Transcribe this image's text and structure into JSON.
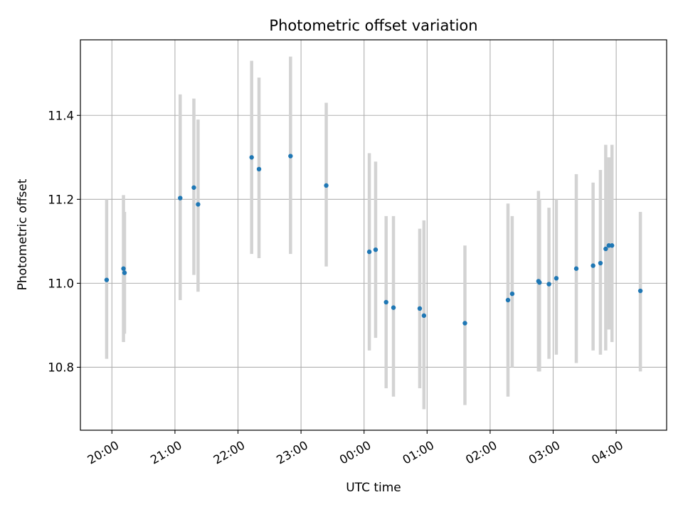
{
  "chart_data": {
    "type": "scatter",
    "title": "Photometric offset variation",
    "xlabel": "UTC time",
    "ylabel": "Photometric offset",
    "x_unit": "UTC time of night starting 19:30",
    "xlim": [
      "19:30",
      "04:48"
    ],
    "ylim": [
      10.65,
      11.58
    ],
    "grid": true,
    "x_ticks": [
      "20:00",
      "21:00",
      "22:00",
      "23:00",
      "00:00",
      "01:00",
      "02:00",
      "03:00",
      "04:00"
    ],
    "y_ticks": [
      "10.8",
      "11.0",
      "11.2",
      "11.4"
    ],
    "y_tick_values": [
      10.8,
      11.0,
      11.2,
      11.4
    ],
    "marker_color": "#1f77b4",
    "errorbar_color": "#d3d3d3",
    "points": [
      {
        "t": "19:55",
        "y": 11.008,
        "lo": 10.82,
        "hi": 11.2
      },
      {
        "t": "20:11",
        "y": 11.035,
        "lo": 10.86,
        "hi": 11.21
      },
      {
        "t": "20:12",
        "y": 11.025,
        "lo": 10.88,
        "hi": 11.17
      },
      {
        "t": "21:05",
        "y": 11.203,
        "lo": 10.96,
        "hi": 11.45
      },
      {
        "t": "21:18",
        "y": 11.228,
        "lo": 11.02,
        "hi": 11.44
      },
      {
        "t": "21:22",
        "y": 11.188,
        "lo": 10.98,
        "hi": 11.39
      },
      {
        "t": "22:13",
        "y": 11.3,
        "lo": 11.07,
        "hi": 11.53
      },
      {
        "t": "22:20",
        "y": 11.272,
        "lo": 11.06,
        "hi": 11.49
      },
      {
        "t": "22:50",
        "y": 11.303,
        "lo": 11.07,
        "hi": 11.54
      },
      {
        "t": "23:24",
        "y": 11.233,
        "lo": 11.04,
        "hi": 11.43
      },
      {
        "t": "00:05",
        "y": 11.075,
        "lo": 10.84,
        "hi": 11.31
      },
      {
        "t": "00:11",
        "y": 11.08,
        "lo": 10.87,
        "hi": 11.29
      },
      {
        "t": "00:21",
        "y": 10.955,
        "lo": 10.75,
        "hi": 11.16
      },
      {
        "t": "00:28",
        "y": 10.942,
        "lo": 10.73,
        "hi": 11.16
      },
      {
        "t": "00:53",
        "y": 10.94,
        "lo": 10.75,
        "hi": 11.13
      },
      {
        "t": "00:57",
        "y": 10.923,
        "lo": 10.7,
        "hi": 11.15
      },
      {
        "t": "01:36",
        "y": 10.905,
        "lo": 10.71,
        "hi": 11.09
      },
      {
        "t": "02:17",
        "y": 10.96,
        "lo": 10.73,
        "hi": 11.19
      },
      {
        "t": "02:21",
        "y": 10.975,
        "lo": 10.8,
        "hi": 11.16
      },
      {
        "t": "02:46",
        "y": 11.005,
        "lo": 10.79,
        "hi": 11.22
      },
      {
        "t": "02:47",
        "y": 11.002,
        "lo": 10.79,
        "hi": 11.2
      },
      {
        "t": "02:56",
        "y": 10.998,
        "lo": 10.82,
        "hi": 11.18
      },
      {
        "t": "03:03",
        "y": 11.012,
        "lo": 10.83,
        "hi": 11.2
      },
      {
        "t": "03:22",
        "y": 11.035,
        "lo": 10.81,
        "hi": 11.26
      },
      {
        "t": "03:38",
        "y": 11.042,
        "lo": 10.84,
        "hi": 11.24
      },
      {
        "t": "03:45",
        "y": 11.048,
        "lo": 10.83,
        "hi": 11.27
      },
      {
        "t": "03:50",
        "y": 11.082,
        "lo": 10.84,
        "hi": 11.33
      },
      {
        "t": "03:53",
        "y": 11.09,
        "lo": 10.89,
        "hi": 11.3
      },
      {
        "t": "03:56",
        "y": 11.09,
        "lo": 10.86,
        "hi": 11.33
      },
      {
        "t": "04:23",
        "y": 10.982,
        "lo": 10.79,
        "hi": 11.17
      }
    ]
  }
}
